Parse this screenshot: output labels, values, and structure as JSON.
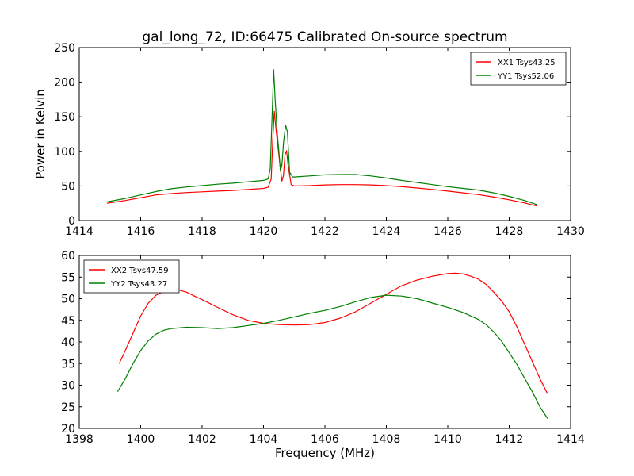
{
  "figure": {
    "title": "gal_long_72, ID:66475 Calibrated On-source spectrum",
    "background": "#ffffff"
  },
  "chart_data": [
    {
      "type": "line",
      "ylabel": "Power in Kelvin",
      "xlabel": "",
      "xlim": [
        1414,
        1430
      ],
      "ylim": [
        0,
        250
      ],
      "xticks": [
        1414,
        1416,
        1418,
        1420,
        1422,
        1424,
        1426,
        1428,
        1430
      ],
      "yticks": [
        0,
        50,
        100,
        150,
        200,
        250
      ],
      "legend_position": "top-right",
      "grid": false,
      "series": [
        {
          "name": "XX1 Tsys43.25",
          "color": "#ff0000",
          "points": [
            [
              1414.9,
              25
            ],
            [
              1415.5,
              29
            ],
            [
              1416,
              33
            ],
            [
              1416.5,
              37
            ],
            [
              1417,
              39
            ],
            [
              1417.5,
              40.5
            ],
            [
              1418,
              41.5
            ],
            [
              1418.5,
              42.5
            ],
            [
              1419,
              43.5
            ],
            [
              1419.5,
              45
            ],
            [
              1420,
              46.5
            ],
            [
              1420.15,
              48
            ],
            [
              1420.25,
              60
            ],
            [
              1420.3,
              115
            ],
            [
              1420.35,
              158
            ],
            [
              1420.4,
              135
            ],
            [
              1420.45,
              115
            ],
            [
              1420.5,
              95
            ],
            [
              1420.55,
              75
            ],
            [
              1420.6,
              57
            ],
            [
              1420.65,
              65
            ],
            [
              1420.7,
              95
            ],
            [
              1420.75,
              101
            ],
            [
              1420.8,
              80
            ],
            [
              1420.9,
              52
            ],
            [
              1421,
              50
            ],
            [
              1421.5,
              50.5
            ],
            [
              1422,
              51.5
            ],
            [
              1422.5,
              52
            ],
            [
              1423,
              52
            ],
            [
              1423.5,
              51.5
            ],
            [
              1424,
              50.5
            ],
            [
              1424.5,
              49
            ],
            [
              1425,
              47
            ],
            [
              1425.5,
              45
            ],
            [
              1426,
              42.5
            ],
            [
              1426.5,
              40
            ],
            [
              1427,
              37.5
            ],
            [
              1427.5,
              34
            ],
            [
              1428,
              30
            ],
            [
              1428.5,
              25.5
            ],
            [
              1428.9,
              21
            ]
          ]
        },
        {
          "name": "YY1 Tsys52.06",
          "color": "#008000",
          "points": [
            [
              1414.9,
              27
            ],
            [
              1415.5,
              32
            ],
            [
              1416,
              37
            ],
            [
              1416.5,
              42
            ],
            [
              1417,
              46
            ],
            [
              1417.5,
              48.5
            ],
            [
              1418,
              50.5
            ],
            [
              1418.5,
              52.5
            ],
            [
              1419,
              54
            ],
            [
              1419.5,
              56
            ],
            [
              1420,
              58
            ],
            [
              1420.15,
              60
            ],
            [
              1420.22,
              75
            ],
            [
              1420.28,
              150
            ],
            [
              1420.33,
              218
            ],
            [
              1420.38,
              175
            ],
            [
              1420.45,
              125
            ],
            [
              1420.5,
              100
            ],
            [
              1420.55,
              72
            ],
            [
              1420.6,
              80
            ],
            [
              1420.65,
              112
            ],
            [
              1420.72,
              138
            ],
            [
              1420.78,
              128
            ],
            [
              1420.85,
              70
            ],
            [
              1420.95,
              63
            ],
            [
              1421,
              63
            ],
            [
              1421.5,
              64.5
            ],
            [
              1422,
              66
            ],
            [
              1422.5,
              66.5
            ],
            [
              1423,
              66.5
            ],
            [
              1423.5,
              64.5
            ],
            [
              1424,
              61.5
            ],
            [
              1424.5,
              58
            ],
            [
              1425,
              55
            ],
            [
              1425.5,
              52
            ],
            [
              1426,
              49
            ],
            [
              1426.5,
              46.5
            ],
            [
              1427,
              44
            ],
            [
              1427.5,
              40
            ],
            [
              1428,
              35
            ],
            [
              1428.5,
              29
            ],
            [
              1428.9,
              23
            ]
          ]
        }
      ]
    },
    {
      "type": "line",
      "ylabel": "",
      "xlabel": "Frequency (MHz)",
      "xlim": [
        1398,
        1414
      ],
      "ylim": [
        20,
        60
      ],
      "xticks": [
        1398,
        1400,
        1402,
        1404,
        1406,
        1408,
        1410,
        1412,
        1414
      ],
      "yticks": [
        20,
        25,
        30,
        35,
        40,
        45,
        50,
        55,
        60
      ],
      "legend_position": "top-left",
      "grid": false,
      "series": [
        {
          "name": "XX2 Tsys47.59",
          "color": "#ff0000",
          "points": [
            [
              1399.3,
              35
            ],
            [
              1399.5,
              38
            ],
            [
              1399.75,
              42
            ],
            [
              1400,
              46
            ],
            [
              1400.25,
              49
            ],
            [
              1400.5,
              50.8
            ],
            [
              1400.75,
              51.7
            ],
            [
              1401,
              52
            ],
            [
              1401.25,
              52
            ],
            [
              1401.5,
              51.5
            ],
            [
              1401.75,
              50.6
            ],
            [
              1402,
              49.8
            ],
            [
              1402.5,
              48
            ],
            [
              1403,
              46.3
            ],
            [
              1403.5,
              45
            ],
            [
              1404,
              44.3
            ],
            [
              1404.5,
              44
            ],
            [
              1405,
              43.9
            ],
            [
              1405.5,
              44
            ],
            [
              1406,
              44.5
            ],
            [
              1406.5,
              45.5
            ],
            [
              1407,
              47
            ],
            [
              1407.5,
              49
            ],
            [
              1408,
              51
            ],
            [
              1408.5,
              53
            ],
            [
              1409,
              54.3
            ],
            [
              1409.5,
              55.2
            ],
            [
              1410,
              55.8
            ],
            [
              1410.25,
              55.9
            ],
            [
              1410.5,
              55.7
            ],
            [
              1410.75,
              55.2
            ],
            [
              1411,
              54.5
            ],
            [
              1411.25,
              53.3
            ],
            [
              1411.5,
              51.5
            ],
            [
              1411.75,
              49.5
            ],
            [
              1412,
              47
            ],
            [
              1412.25,
              43.5
            ],
            [
              1412.5,
              39.5
            ],
            [
              1412.75,
              35.5
            ],
            [
              1413,
              31.5
            ],
            [
              1413.25,
              28
            ]
          ]
        },
        {
          "name": "YY2 Tsys43.27",
          "color": "#008000",
          "points": [
            [
              1399.25,
              28.5
            ],
            [
              1399.5,
              31.5
            ],
            [
              1399.75,
              35
            ],
            [
              1400,
              38
            ],
            [
              1400.25,
              40.3
            ],
            [
              1400.5,
              41.8
            ],
            [
              1400.75,
              42.7
            ],
            [
              1401,
              43.1
            ],
            [
              1401.5,
              43.4
            ],
            [
              1402,
              43.3
            ],
            [
              1402.5,
              43.1
            ],
            [
              1403,
              43.3
            ],
            [
              1403.5,
              43.8
            ],
            [
              1404,
              44.3
            ],
            [
              1404.5,
              45
            ],
            [
              1405,
              45.8
            ],
            [
              1405.5,
              46.6
            ],
            [
              1406,
              47.3
            ],
            [
              1406.5,
              48.2
            ],
            [
              1407,
              49.3
            ],
            [
              1407.5,
              50.3
            ],
            [
              1408,
              50.8
            ],
            [
              1408.5,
              50.6
            ],
            [
              1409,
              50
            ],
            [
              1409.5,
              49
            ],
            [
              1410,
              48
            ],
            [
              1410.5,
              46.8
            ],
            [
              1411,
              45.2
            ],
            [
              1411.25,
              44
            ],
            [
              1411.5,
              42.3
            ],
            [
              1411.75,
              40.2
            ],
            [
              1412,
              37.5
            ],
            [
              1412.25,
              34.8
            ],
            [
              1412.5,
              31.6
            ],
            [
              1412.75,
              28.5
            ],
            [
              1413,
              25
            ],
            [
              1413.25,
              22.3
            ]
          ]
        }
      ]
    }
  ]
}
